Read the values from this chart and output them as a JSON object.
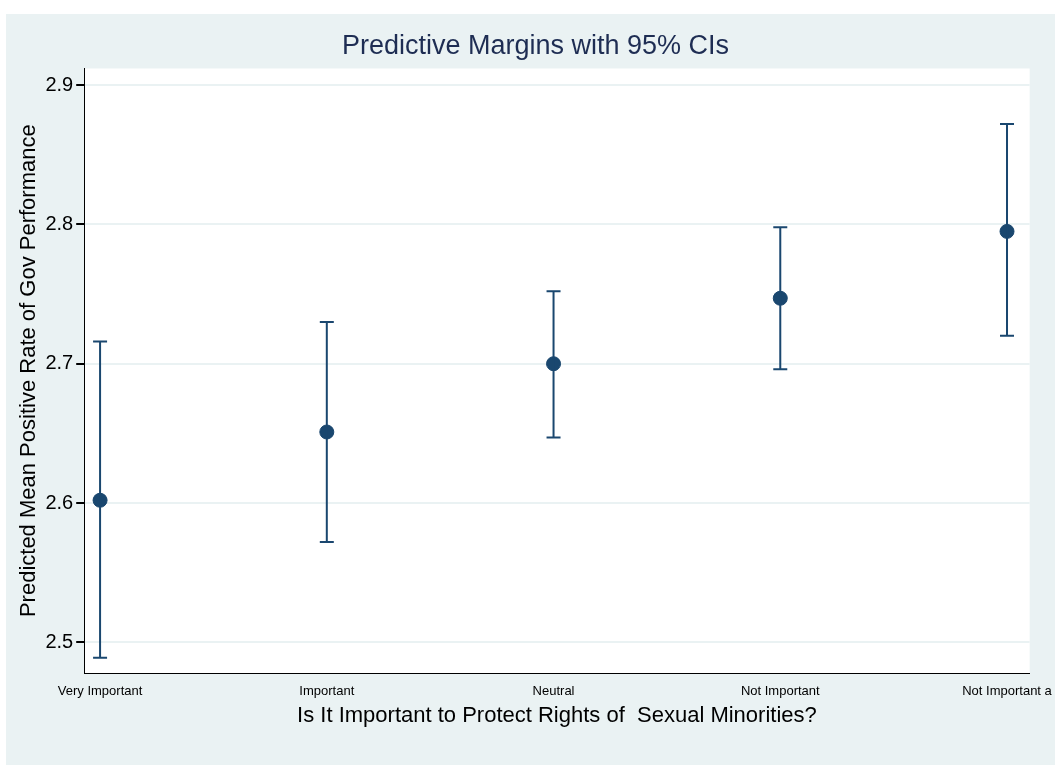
{
  "chart_data": {
    "type": "scatter",
    "title": "Predictive Margins with 95% CIs",
    "xlabel": "Is It Important to Protect Rights of  Sexual Minorities?",
    "ylabel": "Predicted Mean Positive Rate of Gov Performance",
    "categories": [
      "Very Important",
      "Important",
      "Neutral",
      "Not Important",
      "Not Important a"
    ],
    "series": [
      {
        "color": "#1a476f",
        "values": [
          2.602,
          2.651,
          2.7,
          2.747,
          2.795
        ],
        "errors": [
          [
            2.489,
            2.716
          ],
          [
            2.572,
            2.73
          ],
          [
            2.647,
            2.752
          ],
          [
            2.696,
            2.798
          ],
          [
            2.72,
            2.872
          ]
        ]
      }
    ],
    "ylim": [
      2.478,
      2.912
    ],
    "yticks": [
      2.5,
      2.6,
      2.7,
      2.8,
      2.9
    ],
    "grid": "y",
    "marker": "circle",
    "legend": false
  }
}
